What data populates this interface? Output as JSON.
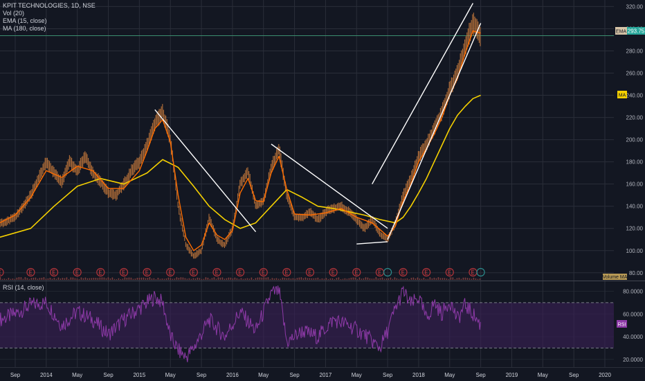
{
  "header": {
    "symbol_line": "KPIT TECHNOLOGIES, 1D, NSE",
    "vol_label": "Vol (20)",
    "ema_label": "EMA (15, close)",
    "ma_label": "MA (180, close)",
    "rsi_label": "RSI (14, close)"
  },
  "badges": {
    "last_price": "293.75",
    "ema_tag": "EMA",
    "ma_tag": "MA",
    "volume_ma_tag": "Volume MA",
    "rsi_tag": "RSI"
  },
  "colors": {
    "background": "#131722",
    "grid": "#2a2e39",
    "candles": "#c87a3c",
    "ema": "#ff6d00",
    "ma": "#f5d000",
    "trendlines": "#ffffff",
    "rsi_line": "#8e3aa8",
    "rsi_band": "#3a1f56",
    "earnings_marker": "#b2343a",
    "dividend_marker": "#2b8c8c",
    "price_line": "#3b8f6f"
  },
  "chart_data": [
    {
      "type": "line",
      "panel": "price",
      "ylim": [
        73,
        324
      ],
      "yticks": [
        80,
        100,
        120,
        140,
        160,
        180,
        200,
        220,
        240,
        260,
        280,
        300,
        320
      ],
      "ytick_labels": [
        "80.00",
        "100.00",
        "120.00",
        "140.00",
        "160.00",
        "180.00",
        "200.00",
        "220.00",
        "240.00",
        "260.00",
        "280.00",
        "300.00",
        "320.00"
      ],
      "x_labels": [
        "Sep",
        "2014",
        "May",
        "Sep",
        "2015",
        "May",
        "Sep",
        "2016",
        "May",
        "Sep",
        "2017",
        "May",
        "Sep",
        "2018",
        "May",
        "Sep",
        "2019",
        "May",
        "Sep",
        "2020"
      ],
      "x_dates": [
        "2013-09",
        "2014-01",
        "2014-05",
        "2014-09",
        "2015-01",
        "2015-05",
        "2015-09",
        "2016-01",
        "2016-05",
        "2016-09",
        "2017-01",
        "2017-05",
        "2017-09",
        "2018-01",
        "2018-05",
        "2018-09",
        "2019-01",
        "2019-05",
        "2019-09",
        "2020-01"
      ],
      "series": [
        {
          "role": "price",
          "x": [
            "2013-07",
            "2013-09",
            "2013-11",
            "2014-01",
            "2014-02",
            "2014-03",
            "2014-04",
            "2014-05",
            "2014-06",
            "2014-07",
            "2014-08",
            "2014-09",
            "2014-10",
            "2014-11",
            "2014-12",
            "2015-01",
            "2015-02",
            "2015-03",
            "2015-04",
            "2015-05",
            "2015-06",
            "2015-07",
            "2015-08",
            "2015-09",
            "2015-10",
            "2015-11",
            "2015-12",
            "2016-01",
            "2016-02",
            "2016-03",
            "2016-04",
            "2016-05",
            "2016-06",
            "2016-07",
            "2016-08",
            "2016-09",
            "2016-10",
            "2016-11",
            "2016-12",
            "2017-01",
            "2017-02",
            "2017-03",
            "2017-04",
            "2017-05",
            "2017-06",
            "2017-07",
            "2017-08",
            "2017-09",
            "2017-10",
            "2017-11",
            "2017-12",
            "2018-01",
            "2018-02",
            "2018-03",
            "2018-04",
            "2018-05",
            "2018-06",
            "2018-07",
            "2018-08",
            "2018-09"
          ],
          "y": [
            124,
            130,
            150,
            180,
            170,
            162,
            180,
            172,
            185,
            170,
            162,
            152,
            150,
            160,
            172,
            180,
            195,
            215,
            225,
            200,
            140,
            105,
            95,
            100,
            130,
            110,
            105,
            120,
            160,
            172,
            140,
            145,
            175,
            192,
            150,
            130,
            130,
            135,
            128,
            135,
            138,
            140,
            135,
            128,
            120,
            128,
            115,
            110,
            125,
            150,
            165,
            185,
            195,
            210,
            225,
            245,
            260,
            285,
            305,
            293
          ]
        },
        {
          "role": "ema",
          "name": "EMA (15, close)",
          "x": [
            "2013-07",
            "2013-09",
            "2013-11",
            "2014-01",
            "2014-03",
            "2014-05",
            "2014-07",
            "2014-09",
            "2014-11",
            "2015-01",
            "2015-02",
            "2015-03",
            "2015-04",
            "2015-05",
            "2015-06",
            "2015-07",
            "2015-08",
            "2015-09",
            "2015-10",
            "2015-11",
            "2015-12",
            "2016-01",
            "2016-02",
            "2016-03",
            "2016-04",
            "2016-05",
            "2016-06",
            "2016-07",
            "2016-08",
            "2016-09",
            "2016-11",
            "2017-01",
            "2017-03",
            "2017-05",
            "2017-07",
            "2017-09",
            "2017-10",
            "2017-11",
            "2017-12",
            "2018-01",
            "2018-02",
            "2018-03",
            "2018-04",
            "2018-05",
            "2018-06",
            "2018-07",
            "2018-08",
            "2018-09"
          ],
          "y": [
            125,
            132,
            148,
            172,
            166,
            176,
            172,
            156,
            156,
            172,
            190,
            210,
            218,
            198,
            150,
            112,
            100,
            105,
            125,
            114,
            110,
            118,
            152,
            165,
            145,
            144,
            170,
            185,
            155,
            133,
            132,
            134,
            138,
            130,
            125,
            113,
            122,
            145,
            160,
            180,
            192,
            205,
            220,
            240,
            255,
            278,
            298,
            296
          ]
        },
        {
          "role": "ma",
          "name": "MA (180, close)",
          "x": [
            "2013-07",
            "2013-11",
            "2014-02",
            "2014-05",
            "2014-08",
            "2014-11",
            "2015-02",
            "2015-04",
            "2015-06",
            "2015-08",
            "2015-10",
            "2015-12",
            "2016-02",
            "2016-04",
            "2016-06",
            "2016-08",
            "2016-10",
            "2016-12",
            "2017-02",
            "2017-04",
            "2017-06",
            "2017-08",
            "2017-10",
            "2017-11",
            "2017-12",
            "2018-01",
            "2018-02",
            "2018-03",
            "2018-04",
            "2018-05",
            "2018-06",
            "2018-07",
            "2018-08",
            "2018-09"
          ],
          "y": [
            112,
            120,
            140,
            158,
            165,
            160,
            170,
            182,
            175,
            158,
            140,
            128,
            120,
            125,
            140,
            155,
            148,
            140,
            138,
            135,
            132,
            128,
            125,
            130,
            140,
            152,
            165,
            180,
            195,
            210,
            222,
            230,
            237,
            240
          ]
        }
      ],
      "trendlines": [
        {
          "x": [
            "2015-03",
            "2016-04"
          ],
          "y": [
            227,
            117
          ]
        },
        {
          "x": [
            "2016-06",
            "2017-09"
          ],
          "y": [
            196,
            120
          ]
        },
        {
          "x": [
            "2017-05",
            "2017-09"
          ],
          "y": [
            106,
            108
          ]
        },
        {
          "x": [
            "2017-09",
            "2018-09"
          ],
          "y": [
            110,
            305
          ]
        },
        {
          "x": [
            "2017-07",
            "2018-08"
          ],
          "y": [
            160,
            323
          ]
        }
      ],
      "earnings_markers": [
        "2013-07",
        "2013-11",
        "2014-02",
        "2014-05",
        "2014-08",
        "2014-11",
        "2015-02",
        "2015-05",
        "2015-08",
        "2015-11",
        "2016-02",
        "2016-05",
        "2016-08",
        "2016-11",
        "2017-02",
        "2017-05",
        "2017-08",
        "2017-11",
        "2018-02",
        "2018-05",
        "2018-08"
      ],
      "dividend_markers": [
        "2017-09",
        "2018-09"
      ]
    },
    {
      "type": "line",
      "panel": "rsi",
      "ylim": [
        15,
        87
      ],
      "yticks": [
        20,
        40,
        60,
        80
      ],
      "ytick_labels": [
        "20.0000",
        "40.0000",
        "60.0000",
        "80.0000"
      ],
      "band": [
        30,
        70
      ],
      "series": [
        {
          "name": "RSI (14, close)",
          "x": [
            "2013-07",
            "2013-09",
            "2013-11",
            "2014-01",
            "2014-03",
            "2014-05",
            "2014-07",
            "2014-09",
            "2014-11",
            "2015-01",
            "2015-03",
            "2015-04",
            "2015-05",
            "2015-06",
            "2015-07",
            "2015-08",
            "2015-10",
            "2015-12",
            "2016-02",
            "2016-04",
            "2016-06",
            "2016-07",
            "2016-08",
            "2016-10",
            "2016-12",
            "2017-02",
            "2017-04",
            "2017-06",
            "2017-07",
            "2017-08",
            "2017-09",
            "2017-10",
            "2017-11",
            "2017-12",
            "2018-01",
            "2018-02",
            "2018-03",
            "2018-04",
            "2018-05",
            "2018-06",
            "2018-07",
            "2018-08",
            "2018-09"
          ],
          "y": [
            55,
            60,
            68,
            70,
            50,
            62,
            55,
            42,
            55,
            65,
            75,
            70,
            40,
            28,
            22,
            30,
            55,
            40,
            62,
            45,
            78,
            80,
            35,
            45,
            40,
            55,
            50,
            42,
            36,
            30,
            45,
            65,
            80,
            68,
            75,
            55,
            70,
            60,
            72,
            55,
            68,
            60,
            50
          ]
        }
      ]
    }
  ]
}
